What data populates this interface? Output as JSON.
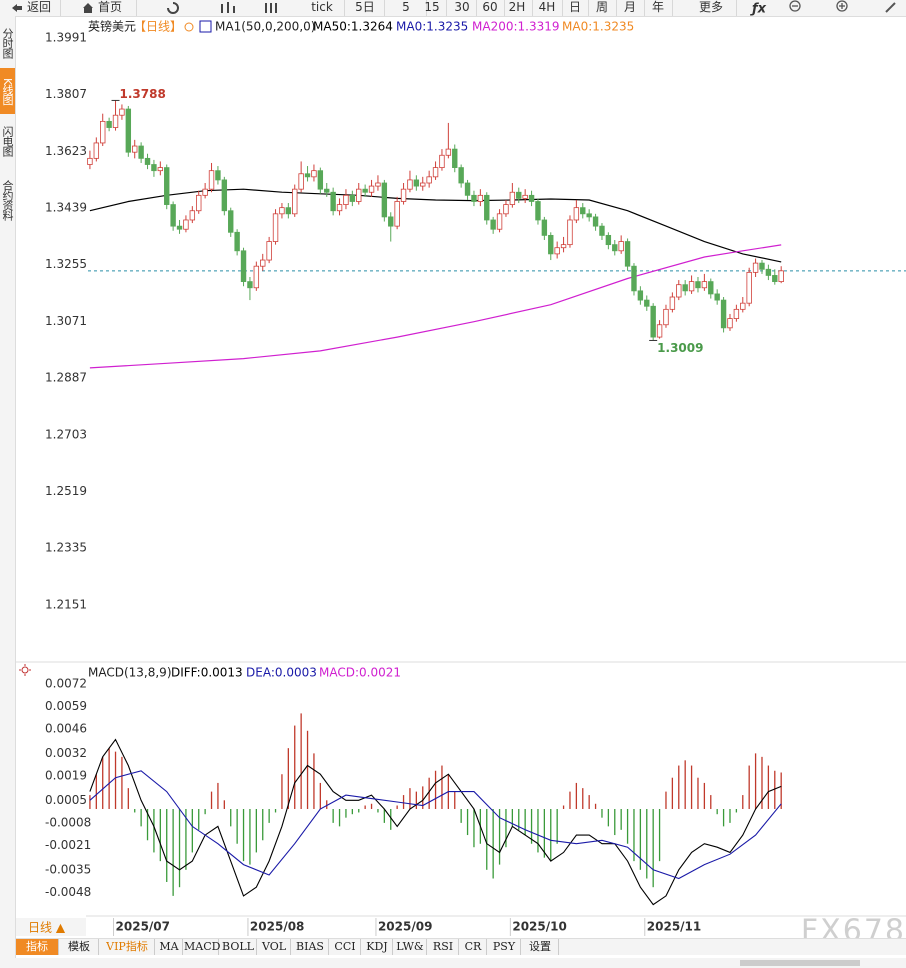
{
  "toolbar": {
    "buttons": [
      "返回",
      "首页",
      "tick",
      "5日",
      "5",
      "15",
      "30",
      "60",
      "2H",
      "4H",
      "日",
      "周",
      "月",
      "年",
      "更多"
    ]
  },
  "sidebar": [
    "分时图",
    "K线图",
    "闪电图",
    "合约资料"
  ],
  "legend": {
    "symbol": "英镑美元",
    "period": "【日线】",
    "indicator": "MA1(50,0,200,0)",
    "items": [
      {
        "text": "MA50:1.3264",
        "color": "#000000"
      },
      {
        "text": "MA0:1.3235",
        "color": "#1a1aa8"
      },
      {
        "text": "MA200:1.3319",
        "color": "#d020d0"
      },
      {
        "text": "MA0:1.3235",
        "color": "#f08a24"
      }
    ]
  },
  "chart_data": [
    {
      "type": "candlestick",
      "up_color": "#d0403a",
      "down_color": "#58a858",
      "grid": false,
      "ylim": [
        1.1972,
        1.4049
      ],
      "yticks": [
        1.3991,
        1.3807,
        1.3623,
        1.3439,
        1.3255,
        1.3071,
        1.2887,
        1.2703,
        1.2519,
        1.2335,
        1.2151
      ],
      "xlim": [
        -0.3,
        127.5
      ],
      "xticks": [
        {
          "value": 4,
          "label": "2025/07"
        },
        {
          "value": 25,
          "label": "2025/08"
        },
        {
          "value": 45,
          "label": "2025/09"
        },
        {
          "value": 66,
          "label": "2025/10"
        },
        {
          "value": 87,
          "label": "2025/11"
        }
      ],
      "candles": [
        [
          1.358,
          1.3625,
          1.3565,
          1.36
        ],
        [
          1.36,
          1.3668,
          1.359,
          1.365
        ],
        [
          1.365,
          1.3745,
          1.364,
          1.372
        ],
        [
          1.372,
          1.3732,
          1.3688,
          1.37
        ],
        [
          1.37,
          1.3788,
          1.369,
          1.374
        ],
        [
          1.374,
          1.3775,
          1.3725,
          1.376
        ],
        [
          1.376,
          1.377,
          1.3605,
          1.362
        ],
        [
          1.362,
          1.366,
          1.36,
          1.364
        ],
        [
          1.364,
          1.3652,
          1.3585,
          1.36
        ],
        [
          1.36,
          1.3615,
          1.3565,
          1.358
        ],
        [
          1.358,
          1.3595,
          1.354,
          1.356
        ],
        [
          1.356,
          1.359,
          1.3545,
          1.357
        ],
        [
          1.357,
          1.358,
          1.3435,
          1.345
        ],
        [
          1.345,
          1.346,
          1.3365,
          1.338
        ],
        [
          1.338,
          1.34,
          1.3355,
          1.337
        ],
        [
          1.337,
          1.3415,
          1.336,
          1.34
        ],
        [
          1.34,
          1.3445,
          1.339,
          1.343
        ],
        [
          1.343,
          1.3495,
          1.342,
          1.348
        ],
        [
          1.348,
          1.352,
          1.347,
          1.35
        ],
        [
          1.35,
          1.3585,
          1.349,
          1.356
        ],
        [
          1.356,
          1.3575,
          1.3515,
          1.353
        ],
        [
          1.353,
          1.354,
          1.3415,
          1.343
        ],
        [
          1.343,
          1.344,
          1.3345,
          1.336
        ],
        [
          1.336,
          1.337,
          1.3285,
          1.33
        ],
        [
          1.33,
          1.331,
          1.3185,
          1.32
        ],
        [
          1.32,
          1.3215,
          1.314,
          1.318
        ],
        [
          1.318,
          1.3265,
          1.317,
          1.325
        ],
        [
          1.325,
          1.329,
          1.3235,
          1.327
        ],
        [
          1.327,
          1.3345,
          1.326,
          1.333
        ],
        [
          1.333,
          1.3435,
          1.332,
          1.342
        ],
        [
          1.342,
          1.3455,
          1.3405,
          1.344
        ],
        [
          1.344,
          1.3455,
          1.3405,
          1.342
        ],
        [
          1.342,
          1.3515,
          1.341,
          1.35
        ],
        [
          1.35,
          1.359,
          1.349,
          1.355
        ],
        [
          1.355,
          1.3575,
          1.3525,
          1.354
        ],
        [
          1.354,
          1.358,
          1.3525,
          1.356
        ],
        [
          1.356,
          1.357,
          1.3485,
          1.35
        ],
        [
          1.35,
          1.352,
          1.3475,
          1.349
        ],
        [
          1.349,
          1.3505,
          1.3415,
          1.343
        ],
        [
          1.343,
          1.347,
          1.3415,
          1.345
        ],
        [
          1.345,
          1.35,
          1.3435,
          1.348
        ],
        [
          1.348,
          1.3495,
          1.3445,
          1.346
        ],
        [
          1.346,
          1.352,
          1.345,
          1.35
        ],
        [
          1.35,
          1.3515,
          1.3475,
          1.349
        ],
        [
          1.349,
          1.353,
          1.3475,
          1.351
        ],
        [
          1.351,
          1.3545,
          1.3495,
          1.352
        ],
        [
          1.352,
          1.353,
          1.3395,
          1.341
        ],
        [
          1.341,
          1.3425,
          1.333,
          1.338
        ],
        [
          1.338,
          1.3475,
          1.337,
          1.346
        ],
        [
          1.346,
          1.352,
          1.345,
          1.35
        ],
        [
          1.35,
          1.356,
          1.349,
          1.353
        ],
        [
          1.353,
          1.3545,
          1.3495,
          1.351
        ],
        [
          1.351,
          1.354,
          1.3495,
          1.352
        ],
        [
          1.352,
          1.356,
          1.3505,
          1.354
        ],
        [
          1.354,
          1.359,
          1.353,
          1.357
        ],
        [
          1.357,
          1.363,
          1.356,
          1.361
        ],
        [
          1.361,
          1.3715,
          1.36,
          1.363
        ],
        [
          1.363,
          1.3645,
          1.3555,
          1.357
        ],
        [
          1.357,
          1.358,
          1.3505,
          1.352
        ],
        [
          1.352,
          1.353,
          1.3465,
          1.348
        ],
        [
          1.348,
          1.3495,
          1.3445,
          1.346
        ],
        [
          1.346,
          1.35,
          1.3445,
          1.348
        ],
        [
          1.348,
          1.349,
          1.3385,
          1.34
        ],
        [
          1.34,
          1.341,
          1.3355,
          1.337
        ],
        [
          1.337,
          1.3435,
          1.336,
          1.342
        ],
        [
          1.342,
          1.3465,
          1.341,
          1.345
        ],
        [
          1.345,
          1.352,
          1.344,
          1.349
        ],
        [
          1.349,
          1.3505,
          1.3455,
          1.347
        ],
        [
          1.347,
          1.35,
          1.3455,
          1.348
        ],
        [
          1.348,
          1.3495,
          1.3445,
          1.346
        ],
        [
          1.346,
          1.347,
          1.3385,
          1.34
        ],
        [
          1.34,
          1.341,
          1.3335,
          1.335
        ],
        [
          1.335,
          1.336,
          1.327,
          1.329
        ],
        [
          1.329,
          1.333,
          1.3275,
          1.331
        ],
        [
          1.331,
          1.3345,
          1.3295,
          1.332
        ],
        [
          1.332,
          1.3415,
          1.331,
          1.34
        ],
        [
          1.34,
          1.3465,
          1.339,
          1.344
        ],
        [
          1.344,
          1.3455,
          1.3405,
          1.342
        ],
        [
          1.342,
          1.3435,
          1.3395,
          1.341
        ],
        [
          1.341,
          1.342,
          1.3365,
          1.338
        ],
        [
          1.338,
          1.339,
          1.3335,
          1.335
        ],
        [
          1.335,
          1.336,
          1.3305,
          1.332
        ],
        [
          1.332,
          1.3335,
          1.3285,
          1.33
        ],
        [
          1.33,
          1.335,
          1.329,
          1.333
        ],
        [
          1.333,
          1.334,
          1.3235,
          1.325
        ],
        [
          1.325,
          1.326,
          1.3155,
          1.317
        ],
        [
          1.317,
          1.3185,
          1.3125,
          1.314
        ],
        [
          1.314,
          1.3155,
          1.3105,
          1.312
        ],
        [
          1.312,
          1.313,
          1.3009,
          1.302
        ],
        [
          1.302,
          1.3075,
          1.3015,
          1.306
        ],
        [
          1.306,
          1.3125,
          1.305,
          1.311
        ],
        [
          1.311,
          1.3165,
          1.31,
          1.315
        ],
        [
          1.315,
          1.3205,
          1.314,
          1.319
        ],
        [
          1.319,
          1.3205,
          1.3155,
          1.317
        ],
        [
          1.317,
          1.322,
          1.316,
          1.32
        ],
        [
          1.32,
          1.3215,
          1.3165,
          1.318
        ],
        [
          1.318,
          1.3225,
          1.317,
          1.32
        ],
        [
          1.32,
          1.321,
          1.3145,
          1.316
        ],
        [
          1.316,
          1.3175,
          1.3125,
          1.314
        ],
        [
          1.314,
          1.315,
          1.3035,
          1.305
        ],
        [
          1.305,
          1.3095,
          1.304,
          1.308
        ],
        [
          1.308,
          1.3125,
          1.307,
          1.311
        ],
        [
          1.311,
          1.315,
          1.31,
          1.313
        ],
        [
          1.313,
          1.3245,
          1.312,
          1.323
        ],
        [
          1.323,
          1.3275,
          1.3215,
          1.326
        ],
        [
          1.326,
          1.327,
          1.3225,
          1.324
        ],
        [
          1.324,
          1.3255,
          1.3205,
          1.322
        ],
        [
          1.322,
          1.324,
          1.319,
          1.32
        ],
        [
          1.32,
          1.325,
          1.3195,
          1.3235
        ]
      ],
      "series": [
        {
          "color": "#000000",
          "x": [
            0,
            6,
            12,
            18,
            24,
            30,
            36,
            42,
            48,
            54,
            60,
            66,
            72,
            78,
            84,
            90,
            96,
            102,
            108
          ],
          "values": [
            1.343,
            1.346,
            1.348,
            1.3495,
            1.35,
            1.349,
            1.3485,
            1.348,
            1.347,
            1.3465,
            1.3463,
            1.3465,
            1.3468,
            1.3465,
            1.343,
            1.338,
            1.333,
            1.329,
            1.3264
          ]
        },
        {
          "color": "#d020d0",
          "x": [
            0,
            12,
            24,
            36,
            48,
            60,
            72,
            84,
            96,
            102,
            108
          ],
          "values": [
            1.292,
            1.2935,
            1.295,
            1.2975,
            1.302,
            1.307,
            1.3125,
            1.321,
            1.328,
            1.33,
            1.3319
          ]
        }
      ],
      "price_line": 1.3235,
      "price_line_color": "#2a8fa8",
      "annotations": [
        {
          "x": 4,
          "value": 1.3788,
          "color": "#c0392b"
        },
        {
          "x": 88,
          "value": 1.3009,
          "color": "#4a9a4a"
        }
      ]
    },
    {
      "type": "macd",
      "title": "MACD(13,8,9)",
      "legend": [
        {
          "text": "DIFF:0.0013",
          "color": "#000000"
        },
        {
          "text": "DEA:0.0003",
          "color": "#1a1aa8"
        },
        {
          "text": "MACD:0.0021",
          "color": "#d020d0"
        }
      ],
      "ylim": [
        -0.0061,
        0.0084
      ],
      "yticks": [
        0.0072,
        0.0059,
        0.0046,
        0.0032,
        0.0019,
        0.0005,
        -0.0008,
        -0.0021,
        -0.0035,
        -0.0048
      ],
      "xlim": [
        -0.3,
        127.5
      ],
      "up_color": "#c0392b",
      "down_color": "#3a9a3a",
      "histogram": [
        0.0008,
        0.002,
        0.003,
        0.0035,
        0.0033,
        0.003,
        0.0012,
        -0.0002,
        -0.001,
        -0.0018,
        -0.0025,
        -0.003,
        -0.0042,
        -0.005,
        -0.0045,
        -0.0035,
        -0.0025,
        -0.0012,
        -0.0003,
        0.001,
        0.0015,
        0.0005,
        -0.001,
        -0.002,
        -0.003,
        -0.0032,
        -0.0025,
        -0.0018,
        -0.0008,
        -0.0002,
        0.002,
        0.0035,
        0.0048,
        0.0055,
        0.0045,
        0.0032,
        0.0015,
        0.0005,
        -0.0008,
        -0.001,
        -0.0005,
        -0.0003,
        -0.0002,
        0.0002,
        0.0003,
        -0.0002,
        -0.0008,
        -0.0012,
        0.0002,
        0.0008,
        0.0012,
        0.001,
        0.0013,
        0.0018,
        0.0022,
        0.0025,
        0.002,
        0.001,
        -0.0008,
        -0.0015,
        -0.0022,
        -0.002,
        -0.0035,
        -0.004,
        -0.0032,
        -0.0022,
        -0.001,
        -0.0012,
        -0.0015,
        -0.002,
        -0.0025,
        -0.0028,
        -0.003,
        -0.002,
        0.0002,
        0.001,
        0.0015,
        0.0012,
        0.0008,
        0.0003,
        -0.0005,
        -0.001,
        -0.0015,
        -0.0012,
        -0.002,
        -0.003,
        -0.0035,
        -0.004,
        -0.0045,
        -0.003,
        0.001,
        0.0018,
        0.0025,
        0.0028,
        0.0025,
        0.0018,
        0.0015,
        0.0008,
        -0.0003,
        -0.001,
        -0.0008,
        -0.0002,
        0.0008,
        0.0025,
        0.0032,
        0.003,
        0.0025,
        0.0022,
        0.0021
      ],
      "series": [
        {
          "color": "#000000",
          "x": [
            0,
            2,
            4,
            6,
            8,
            10,
            12,
            14,
            16,
            18,
            20,
            22,
            24,
            26,
            28,
            30,
            32,
            34,
            36,
            38,
            40,
            42,
            44,
            46,
            48,
            50,
            52,
            54,
            56,
            58,
            60,
            62,
            64,
            66,
            68,
            70,
            72,
            74,
            76,
            78,
            80,
            82,
            84,
            86,
            88,
            90,
            92,
            94,
            96,
            98,
            100,
            102,
            104,
            106,
            108
          ],
          "values": [
            0.001,
            0.003,
            0.004,
            0.0025,
            0.0005,
            -0.001,
            -0.003,
            -0.0035,
            -0.003,
            -0.0015,
            -0.001,
            -0.003,
            -0.005,
            -0.0045,
            -0.003,
            -0.001,
            0.0015,
            0.0025,
            0.002,
            0.001,
            0.0005,
            0.0005,
            0.0008,
            0.0,
            -0.001,
            0.0,
            0.0005,
            0.0015,
            0.002,
            0.001,
            0.0,
            -0.002,
            -0.0025,
            -0.001,
            -0.0015,
            -0.002,
            -0.003,
            -0.0025,
            -0.0015,
            -0.0015,
            -0.002,
            -0.002,
            -0.003,
            -0.0045,
            -0.0055,
            -0.005,
            -0.0035,
            -0.0025,
            -0.002,
            -0.0022,
            -0.0025,
            -0.0015,
            0.0,
            0.001,
            0.0013
          ]
        },
        {
          "color": "#1a1aa8",
          "x": [
            0,
            4,
            8,
            12,
            16,
            20,
            24,
            28,
            32,
            36,
            40,
            44,
            48,
            52,
            56,
            60,
            64,
            68,
            72,
            76,
            80,
            84,
            88,
            92,
            96,
            100,
            104,
            108
          ],
          "values": [
            0.0005,
            0.0018,
            0.0022,
            0.001,
            -0.001,
            -0.002,
            -0.0032,
            -0.0038,
            -0.002,
            0.0,
            0.0008,
            0.0006,
            0.0004,
            0.0002,
            0.001,
            0.001,
            -0.0005,
            -0.0012,
            -0.0018,
            -0.002,
            -0.0018,
            -0.0022,
            -0.0035,
            -0.004,
            -0.0032,
            -0.0026,
            -0.0015,
            0.0003
          ]
        }
      ]
    }
  ],
  "period_button": "日线 ▲",
  "tabs": [
    "指标",
    "模板",
    "VIP指标",
    "MA",
    "MACD",
    "BOLL",
    "VOL",
    "BIAS",
    "CCI",
    "KDJ",
    "LW&",
    "RSI",
    "CR",
    "PSY",
    "设置"
  ],
  "watermark": "FX678"
}
